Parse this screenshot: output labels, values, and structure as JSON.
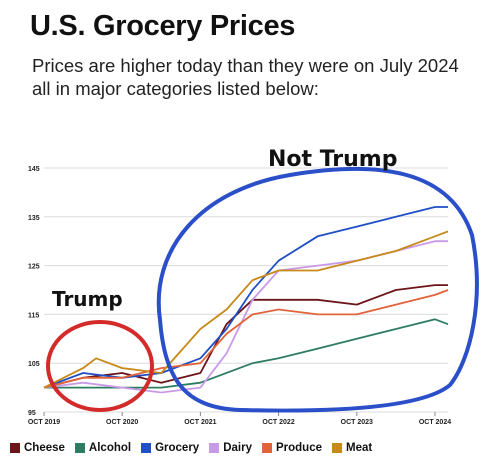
{
  "title": "U.S. Grocery Prices",
  "subtitle": "Prices are higher today than they were on July 2024 all in major categories listed below:",
  "annotations": {
    "left": "Trump",
    "right": "Not Trump"
  },
  "colors": {
    "Cheese": "#6b1419",
    "Alcohol": "#2e7d63",
    "Grocery": "#1f4fc4",
    "Dairy": "#c99ae8",
    "Produce": "#e0643a",
    "Meat": "#c78a1a",
    "trump_circle": "#d32a2a",
    "not_trump_circle": "#2a4fc9"
  },
  "chart_data": {
    "type": "line",
    "ylim": [
      95,
      145
    ],
    "yticks": [
      95,
      105,
      115,
      125,
      135,
      145
    ],
    "xlim": [
      "2019-10",
      "2024-12"
    ],
    "xticks": [
      {
        "x": "2019-10",
        "label": "OCT 2019"
      },
      {
        "x": "2020-10",
        "label": "OCT 2020"
      },
      {
        "x": "2021-10",
        "label": "OCT 2021"
      },
      {
        "x": "2022-10",
        "label": "OCT 2022"
      },
      {
        "x": "2023-10",
        "label": "OCT 2023"
      },
      {
        "x": "2024-10",
        "label": "OCT 2024"
      }
    ],
    "series": [
      {
        "name": "Cheese",
        "values": [
          [
            "2019-10",
            100
          ],
          [
            "2020-04",
            102
          ],
          [
            "2020-10",
            103
          ],
          [
            "2021-04",
            101
          ],
          [
            "2021-10",
            103
          ],
          [
            "2022-02",
            113
          ],
          [
            "2022-06",
            118
          ],
          [
            "2022-10",
            118
          ],
          [
            "2023-04",
            118
          ],
          [
            "2023-10",
            117
          ],
          [
            "2024-04",
            120
          ],
          [
            "2024-10",
            121
          ],
          [
            "2024-12",
            121
          ]
        ]
      },
      {
        "name": "Alcohol",
        "values": [
          [
            "2019-10",
            100
          ],
          [
            "2020-04",
            100
          ],
          [
            "2020-10",
            100
          ],
          [
            "2021-04",
            100
          ],
          [
            "2021-10",
            101
          ],
          [
            "2022-06",
            105
          ],
          [
            "2022-10",
            106
          ],
          [
            "2023-04",
            108
          ],
          [
            "2023-10",
            110
          ],
          [
            "2024-04",
            112
          ],
          [
            "2024-10",
            114
          ],
          [
            "2024-12",
            113
          ]
        ]
      },
      {
        "name": "Grocery",
        "values": [
          [
            "2019-10",
            100
          ],
          [
            "2020-04",
            103
          ],
          [
            "2020-10",
            102
          ],
          [
            "2021-04",
            103
          ],
          [
            "2021-10",
            106
          ],
          [
            "2022-02",
            112
          ],
          [
            "2022-06",
            120
          ],
          [
            "2022-10",
            126
          ],
          [
            "2023-04",
            131
          ],
          [
            "2023-10",
            133
          ],
          [
            "2024-04",
            135
          ],
          [
            "2024-10",
            137
          ],
          [
            "2024-12",
            137
          ]
        ]
      },
      {
        "name": "Dairy",
        "values": [
          [
            "2019-10",
            100
          ],
          [
            "2020-04",
            101
          ],
          [
            "2020-10",
            100
          ],
          [
            "2021-04",
            99
          ],
          [
            "2021-10",
            100
          ],
          [
            "2022-02",
            107
          ],
          [
            "2022-06",
            118
          ],
          [
            "2022-10",
            124
          ],
          [
            "2023-04",
            125
          ],
          [
            "2023-10",
            126
          ],
          [
            "2024-04",
            128
          ],
          [
            "2024-10",
            130
          ],
          [
            "2024-12",
            130
          ]
        ]
      },
      {
        "name": "Produce",
        "values": [
          [
            "2019-10",
            100
          ],
          [
            "2020-04",
            102
          ],
          [
            "2020-10",
            102
          ],
          [
            "2021-04",
            104
          ],
          [
            "2021-10",
            105
          ],
          [
            "2022-02",
            111
          ],
          [
            "2022-06",
            115
          ],
          [
            "2022-10",
            116
          ],
          [
            "2023-04",
            115
          ],
          [
            "2023-10",
            115
          ],
          [
            "2024-04",
            117
          ],
          [
            "2024-10",
            119
          ],
          [
            "2024-12",
            120
          ]
        ]
      },
      {
        "name": "Meat",
        "values": [
          [
            "2019-10",
            100
          ],
          [
            "2020-04",
            104
          ],
          [
            "2020-06",
            106
          ],
          [
            "2020-10",
            104
          ],
          [
            "2021-04",
            103
          ],
          [
            "2021-10",
            112
          ],
          [
            "2022-02",
            116
          ],
          [
            "2022-06",
            122
          ],
          [
            "2022-10",
            124
          ],
          [
            "2023-04",
            124
          ],
          [
            "2023-10",
            126
          ],
          [
            "2024-04",
            128
          ],
          [
            "2024-10",
            131
          ],
          [
            "2024-12",
            132
          ]
        ]
      }
    ]
  }
}
